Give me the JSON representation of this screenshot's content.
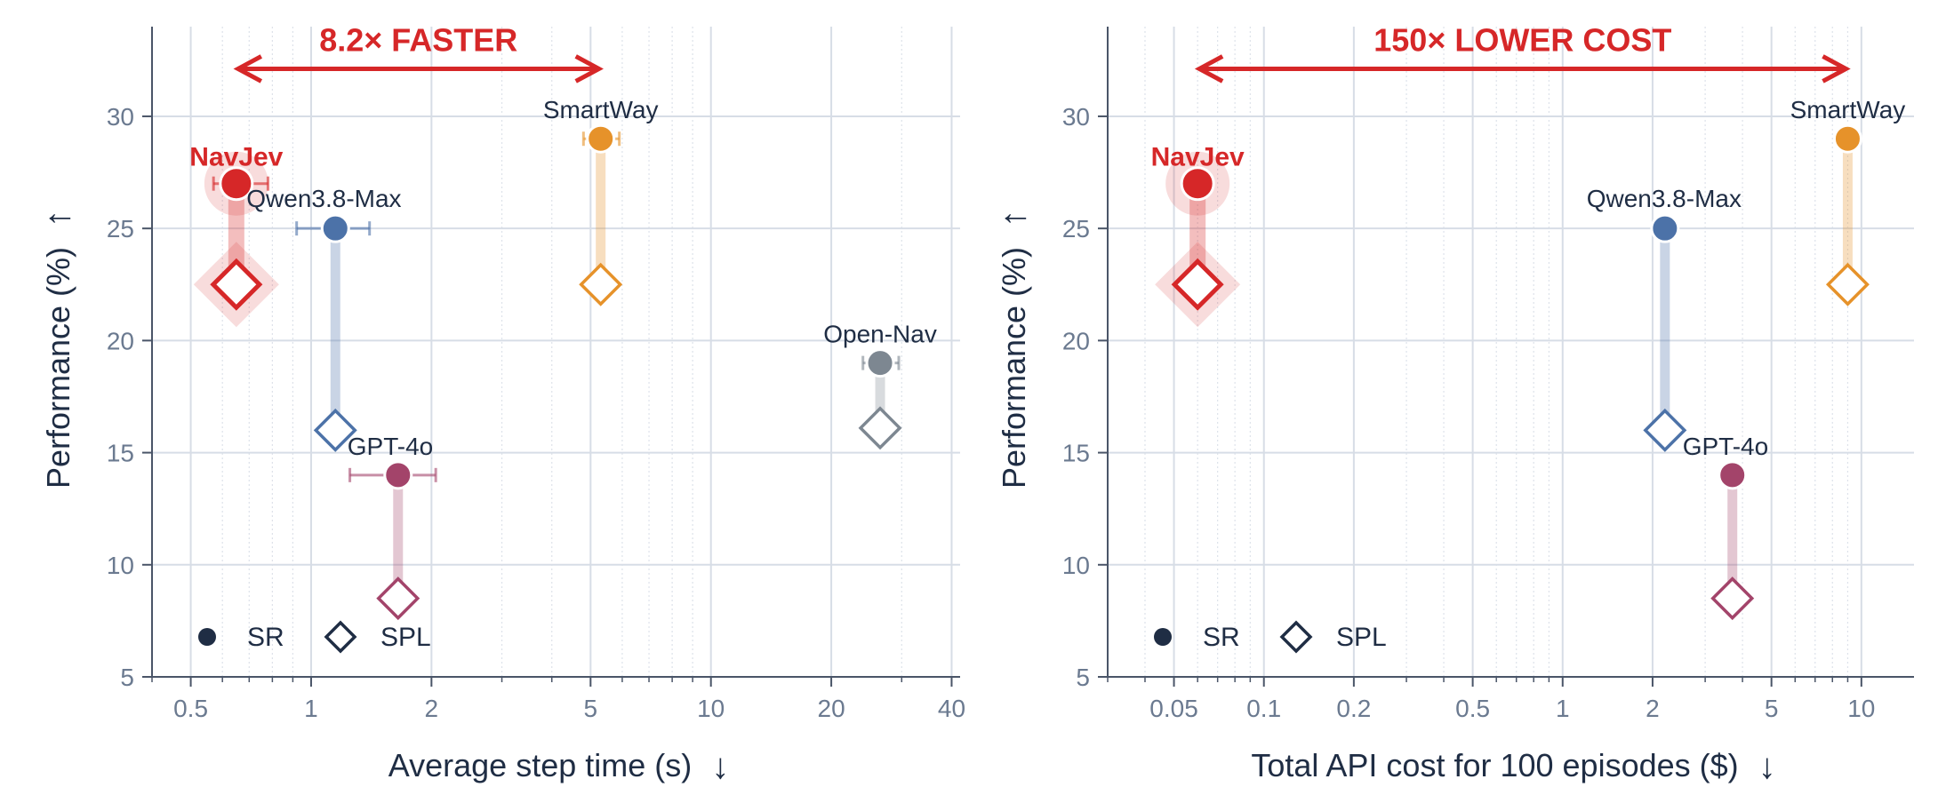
{
  "chart_data": [
    {
      "type": "scatter",
      "xscale": "log",
      "xlabel": "Average step time (s)",
      "xlabel_arrow": "↓",
      "ylabel": "Performance (%)",
      "ylabel_arrow": "↑",
      "xlim": [
        0.4,
        42
      ],
      "ylim": [
        5,
        34
      ],
      "xticks": [
        0.5,
        1,
        2,
        5,
        10,
        20,
        40
      ],
      "xtick_labels": [
        "0.5",
        "1",
        "2",
        "5",
        "10",
        "20",
        "40"
      ],
      "yticks": [
        5,
        10,
        15,
        20,
        25,
        30
      ],
      "ytick_labels": [
        "5",
        "10",
        "15",
        "20",
        "25",
        "30"
      ],
      "grid": true,
      "legend": {
        "position": "bottom-left",
        "entries": [
          {
            "label": "SR",
            "marker": "circle"
          },
          {
            "label": "SPL",
            "marker": "diamond"
          }
        ]
      },
      "annotation": {
        "text": "8.2× FASTER",
        "from": 0.65,
        "to": 5.3,
        "y": 32,
        "color": "#d62728"
      },
      "models": [
        {
          "name": "NavJev",
          "x": 0.65,
          "xerr": [
            0.57,
            0.78
          ],
          "sr": 27,
          "spl": 22.5,
          "color": "#d62728",
          "highlight": true
        },
        {
          "name": "Qwen3.8-Max",
          "x": 1.15,
          "xerr": [
            0.92,
            1.4
          ],
          "sr": 25,
          "spl": 16,
          "color": "#4c72a8",
          "highlight": false
        },
        {
          "name": "GPT-4o",
          "x": 1.65,
          "xerr": [
            1.25,
            2.05
          ],
          "sr": 14,
          "spl": 8.5,
          "color": "#a3446a",
          "highlight": false
        },
        {
          "name": "SmartWay",
          "x": 5.3,
          "xerr": [
            4.8,
            5.9
          ],
          "sr": 29,
          "spl": 22.5,
          "color": "#e6922a",
          "highlight": false
        },
        {
          "name": "Open-Nav",
          "x": 26.5,
          "xerr": [
            24,
            29.5
          ],
          "sr": 19,
          "spl": 16.1,
          "color": "#7d8791",
          "highlight": false
        }
      ]
    },
    {
      "type": "scatter",
      "xscale": "log",
      "xlabel": "Total API cost for 100 episodes ($)",
      "xlabel_arrow": "↓",
      "ylabel": "Performance (%)",
      "ylabel_arrow": "↑",
      "xlim": [
        0.03,
        15
      ],
      "ylim": [
        5,
        34
      ],
      "xticks": [
        0.05,
        0.1,
        0.2,
        0.5,
        1,
        2,
        5,
        10
      ],
      "xtick_labels": [
        "0.05",
        "0.1",
        "0.2",
        "0.5",
        "1",
        "2",
        "5",
        "10"
      ],
      "yticks": [
        5,
        10,
        15,
        20,
        25,
        30
      ],
      "ytick_labels": [
        "5",
        "10",
        "15",
        "20",
        "25",
        "30"
      ],
      "grid": true,
      "legend": {
        "position": "bottom-left",
        "entries": [
          {
            "label": "SR",
            "marker": "circle"
          },
          {
            "label": "SPL",
            "marker": "diamond"
          }
        ]
      },
      "annotation": {
        "text": "150× LOWER COST",
        "from": 0.06,
        "to": 9,
        "y": 32,
        "color": "#d62728"
      },
      "models": [
        {
          "name": "NavJev",
          "x": 0.06,
          "sr": 27,
          "spl": 22.5,
          "color": "#d62728",
          "highlight": true
        },
        {
          "name": "Qwen3.8-Max",
          "x": 2.2,
          "sr": 25,
          "spl": 16,
          "color": "#4c72a8",
          "highlight": false
        },
        {
          "name": "GPT-4o",
          "x": 3.7,
          "sr": 14,
          "spl": 8.5,
          "color": "#a3446a",
          "highlight": false
        },
        {
          "name": "SmartWay",
          "x": 9,
          "sr": 29,
          "spl": 22.5,
          "color": "#e6922a",
          "highlight": false
        }
      ]
    }
  ]
}
